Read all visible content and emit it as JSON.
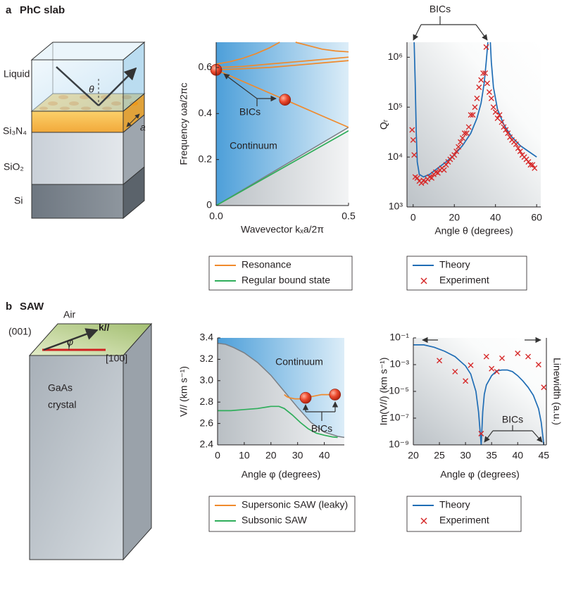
{
  "panels": [
    {
      "label": "a",
      "title": "PhC slab",
      "diagram": {
        "labels": [
          "Liquid",
          "Si₃N₄",
          "SiO₂",
          "Si",
          "θ",
          "a"
        ]
      }
    },
    {
      "label": "b",
      "title": "SAW",
      "diagram": {
        "labels": [
          "Air",
          "(001)",
          "k//",
          "φ",
          "[100]",
          "GaAs",
          "crystal"
        ]
      }
    }
  ],
  "chart_data": [
    {
      "type": "line",
      "xlabel": "Wavevector kₓa/2π",
      "ylabel": "Frequency ωa/2πc",
      "annotations": [
        "BICs",
        "Continuum"
      ],
      "xlim": [
        0,
        0.5
      ],
      "ylim": [
        0,
        0.71
      ],
      "xticks": [
        {
          "value": 0,
          "label": "0.0"
        },
        0.5
      ],
      "yticks": [
        0,
        0.2,
        0.4,
        0.6
      ],
      "legend": "below",
      "series": [
        {
          "name": "Resonance",
          "color": "#f08a2c",
          "x": [
            0,
            0.05,
            0.1,
            0.15,
            0.2,
            0.24,
            null,
            0.3,
            0.35,
            0.4,
            0.45,
            0.5,
            null,
            0,
            0.1,
            0.2,
            0.3,
            0.4,
            0.5,
            null,
            0,
            0.1,
            0.2,
            0.3,
            0.4,
            0.5,
            null,
            0,
            0.1,
            0.2,
            0.3,
            0.4,
            0.5
          ],
          "values": [
            0.615,
            0.625,
            0.64,
            0.66,
            0.685,
            0.71,
            null,
            0.71,
            0.695,
            0.68,
            0.672,
            0.668,
            null,
            0.6,
            0.605,
            0.615,
            0.625,
            0.635,
            0.645,
            null,
            0.59,
            0.595,
            0.6,
            0.61,
            0.62,
            0.63,
            null,
            0.59,
            0.54,
            0.49,
            0.44,
            0.39,
            0.34
          ]
        },
        {
          "name": "Regular bound state",
          "color": "#2fae5b",
          "x": [
            0,
            0.1,
            0.2,
            0.3,
            0.4,
            0.5
          ],
          "values": [
            0,
            0.065,
            0.13,
            0.195,
            0.26,
            0.325
          ]
        }
      ],
      "continuum_boundary": {
        "color": "#7a7f85",
        "x": [
          0,
          0.5
        ],
        "values": [
          0,
          0.34
        ]
      },
      "bic_points": {
        "color": "#e0402a",
        "x": [
          0,
          0.26
        ],
        "values": [
          0.59,
          0.46
        ]
      }
    },
    {
      "type": "line",
      "xlabel": "Angle θ (degrees)",
      "ylabel": "Qᵣ",
      "annotations": [
        "BICs"
      ],
      "y_scale": "log",
      "xlim": [
        -3,
        62
      ],
      "ylim": [
        1000,
        2000000
      ],
      "xticks": [
        0,
        20,
        40,
        60
      ],
      "yticks": [
        {
          "value": 1000,
          "label": "10³"
        },
        {
          "value": 10000,
          "label": "10⁴"
        },
        {
          "value": 100000,
          "label": "10⁵"
        },
        {
          "value": 1000000,
          "label": "10⁶"
        }
      ],
      "legend": "below",
      "series": [
        {
          "name": "Theory",
          "color": "#1f6db5",
          "mode": "line",
          "x": [
            0.5,
            1,
            1.5,
            2,
            3,
            5,
            8,
            12,
            16,
            20,
            24,
            28,
            31,
            33,
            34.5,
            35.5,
            36.3,
            null,
            37.5,
            38,
            39,
            41,
            44,
            48,
            52,
            56,
            60
          ],
          "values": [
            2000000,
            300000,
            30000,
            8000,
            4500,
            4000,
            4500,
            6000,
            8000,
            11000,
            17000,
            30000,
            60000,
            120000,
            300000,
            800000,
            2000000,
            null,
            2000000,
            800000,
            250000,
            90000,
            45000,
            25000,
            17000,
            13000,
            10000
          ]
        },
        {
          "name": "Experiment",
          "color": "#d62a2a",
          "mode": "markers",
          "x": [
            -0.5,
            0,
            0.5,
            1,
            2,
            3,
            4,
            5,
            6,
            7,
            8,
            9,
            10,
            11,
            12,
            13,
            14,
            15,
            16,
            17,
            18,
            19,
            20,
            21,
            22,
            23,
            24,
            25,
            26,
            27,
            28,
            29,
            30,
            31,
            32,
            33,
            34,
            35,
            35.5,
            36,
            37,
            38,
            39,
            40,
            41,
            42,
            43,
            44,
            45,
            46,
            47,
            48,
            49,
            50,
            51,
            52,
            53,
            54,
            55,
            56,
            57,
            58,
            59
          ],
          "values": [
            35000,
            22000,
            11000,
            4000,
            3800,
            3300,
            3000,
            3400,
            3200,
            3600,
            4000,
            3800,
            4500,
            5000,
            4800,
            5500,
            6000,
            5500,
            7000,
            8000,
            9000,
            10000,
            11000,
            13000,
            16000,
            20000,
            24000,
            30000,
            30000,
            40000,
            70000,
            70000,
            100000,
            150000,
            250000,
            350000,
            480000,
            480000,
            1600000,
            300000,
            200000,
            150000,
            100000,
            80000,
            60000,
            70000,
            50000,
            40000,
            35000,
            30000,
            25000,
            22000,
            20000,
            18000,
            15000,
            13000,
            11000,
            10000,
            9000,
            8000,
            7000,
            7000,
            6000
          ]
        }
      ]
    },
    {
      "type": "line",
      "xlabel": "Angle φ (degrees)",
      "ylabel": "V// (km s⁻¹)",
      "annotations": [
        "Continuum",
        "BICs"
      ],
      "xlim": [
        0,
        47.5
      ],
      "ylim": [
        2.4,
        3.4
      ],
      "xticks": [
        0,
        10,
        20,
        30,
        40
      ],
      "yticks": [
        2.4,
        2.6,
        2.8,
        {
          "value": 3,
          "label": "3.0"
        },
        3.2,
        3.4
      ],
      "legend": "below",
      "series": [
        {
          "name": "Supersonic SAW (leaky)",
          "color": "#f08a2c",
          "x": [
            25,
            26,
            27,
            29,
            31,
            33,
            35,
            37,
            39,
            41,
            43,
            44
          ],
          "values": [
            2.87,
            2.85,
            2.84,
            2.83,
            2.83,
            2.84,
            2.85,
            2.86,
            2.87,
            2.87,
            2.87,
            2.87
          ]
        },
        {
          "name": "Subsonic SAW",
          "color": "#2fae5b",
          "x": [
            0,
            5,
            10,
            15,
            20,
            23,
            25,
            28,
            31,
            34,
            37,
            40,
            43,
            45
          ],
          "values": [
            2.72,
            2.72,
            2.73,
            2.74,
            2.76,
            2.76,
            2.74,
            2.68,
            2.61,
            2.55,
            2.51,
            2.49,
            2.475,
            2.47
          ]
        }
      ],
      "continuum_boundary": {
        "color": "#7a7f85",
        "x": [
          0,
          3,
          6,
          10,
          15,
          20,
          25,
          30,
          35,
          40,
          45,
          47.5
        ],
        "values": [
          3.35,
          3.34,
          3.31,
          3.26,
          3.17,
          3.05,
          2.9,
          2.75,
          2.61,
          2.52,
          2.48,
          2.47
        ]
      },
      "bic_points": {
        "color": "#e0402a",
        "x": [
          33,
          44
        ],
        "values": [
          2.84,
          2.87
        ]
      }
    },
    {
      "type": "line",
      "xlabel": "Angle φ (degrees)",
      "ylabel": "Im(V//) (km s⁻¹)",
      "y2label": "Linewidth (a.u.)",
      "annotations": [
        "BICs"
      ],
      "y_scale": "log",
      "xlim": [
        20,
        45.5
      ],
      "ylim": [
        1e-09,
        0.1
      ],
      "xticks": [
        20,
        25,
        30,
        35,
        40,
        45
      ],
      "yticks": [
        {
          "value": 1e-09,
          "label": "10⁻⁹"
        },
        {
          "value": 1e-07,
          "label": "10⁻⁷"
        },
        {
          "value": 1e-05,
          "label": "10⁻⁵"
        },
        {
          "value": 0.001,
          "label": "10⁻³"
        },
        {
          "value": 0.1,
          "label": "10⁻¹"
        }
      ],
      "legend": "below",
      "series": [
        {
          "name": "Theory",
          "color": "#1f6db5",
          "mode": "line",
          "x": [
            20,
            22,
            24,
            26,
            28,
            30,
            31,
            32,
            32.5,
            33,
            33.3,
            33.6,
            34,
            35,
            36,
            37,
            38,
            39,
            40,
            41,
            42,
            43,
            44,
            44.5,
            44.8,
            45
          ],
          "values": [
            0.03,
            0.03,
            0.02,
            0.01,
            0.004,
            0.0008,
            0.0002,
            1e-05,
            3e-07,
            1e-09,
            3e-07,
            6e-06,
            3e-05,
            0.00015,
            0.00035,
            0.0004,
            0.0004,
            0.0003,
            0.00015,
            6e-05,
            2e-05,
            5e-06,
            5e-07,
            5e-08,
            5e-09,
            1e-09
          ]
        },
        {
          "name": "Experiment",
          "color": "#d62a2a",
          "mode": "markers",
          "x": [
            25,
            28,
            30,
            31,
            33,
            34,
            35,
            36,
            37,
            40,
            42,
            44,
            45
          ],
          "values": [
            0.002,
            0.0003,
            6e-05,
            0.0009,
            7e-09,
            0.004,
            0.0005,
            0.0003,
            0.003,
            0.007,
            0.004,
            0.001,
            2e-05
          ]
        }
      ]
    }
  ]
}
